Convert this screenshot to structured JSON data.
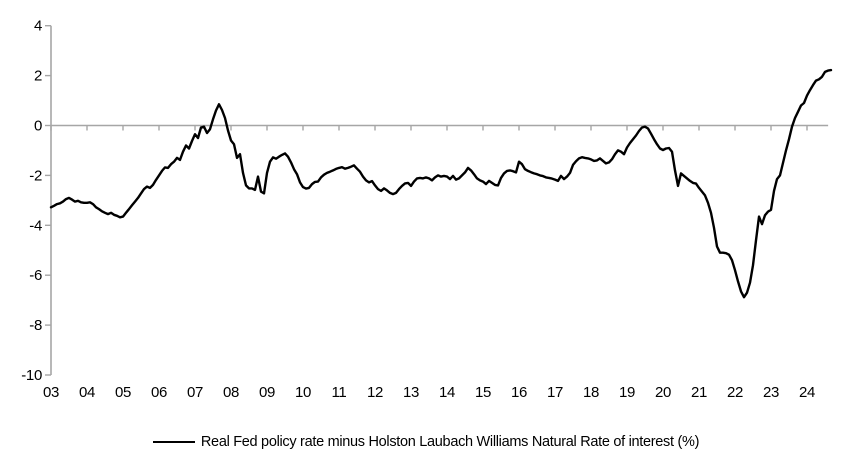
{
  "chart_data": {
    "type": "line",
    "title": "",
    "legend": "Real Fed policy rate minus Holston Laubach Williams Natural Rate of interest (%)",
    "legend_position": "bottom-center",
    "grid": "horizontal zero-line only, x-axis drawn at y=0 with year ticks",
    "x_label": "",
    "y_label": "",
    "x_range": [
      2003.0,
      2024.67
    ],
    "y_range": [
      -10,
      4
    ],
    "y_ticks": [
      4,
      2,
      0,
      -2,
      -4,
      -6,
      -8,
      -10
    ],
    "x_tick_years": [
      2003,
      2004,
      2005,
      2006,
      2007,
      2008,
      2009,
      2010,
      2011,
      2012,
      2013,
      2014,
      2015,
      2016,
      2017,
      2018,
      2019,
      2020,
      2021,
      2022,
      2023,
      2024
    ],
    "x_tick_labels": [
      "03",
      "04",
      "05",
      "06",
      "07",
      "08",
      "09",
      "10",
      "11",
      "12",
      "13",
      "14",
      "15",
      "16",
      "17",
      "18",
      "19",
      "20",
      "21",
      "22",
      "23",
      "24"
    ],
    "x_unit": "year (monthly observations)",
    "series": [
      {
        "name": "Real Fed policy rate minus Holston Laubach Williams Natural Rate of interest (%)",
        "color": "#000000",
        "x_start": 2003.0,
        "x_step": 0.0833333,
        "y": [
          -3.28,
          -3.22,
          -3.15,
          -3.12,
          -3.05,
          -2.95,
          -2.9,
          -2.97,
          -3.05,
          -3.02,
          -3.08,
          -3.1,
          -3.1,
          -3.08,
          -3.15,
          -3.28,
          -3.35,
          -3.44,
          -3.5,
          -3.55,
          -3.5,
          -3.58,
          -3.62,
          -3.68,
          -3.65,
          -3.5,
          -3.35,
          -3.2,
          -3.05,
          -2.9,
          -2.72,
          -2.55,
          -2.45,
          -2.5,
          -2.38,
          -2.18,
          -2.0,
          -1.82,
          -1.68,
          -1.7,
          -1.55,
          -1.45,
          -1.3,
          -1.38,
          -1.05,
          -0.8,
          -0.92,
          -0.62,
          -0.35,
          -0.5,
          -0.08,
          -0.05,
          -0.3,
          -0.15,
          0.25,
          0.6,
          0.85,
          0.62,
          0.3,
          -0.2,
          -0.6,
          -0.75,
          -1.3,
          -1.15,
          -1.9,
          -2.4,
          -2.52,
          -2.52,
          -2.58,
          -2.05,
          -2.65,
          -2.72,
          -1.9,
          -1.45,
          -1.28,
          -1.33,
          -1.25,
          -1.18,
          -1.12,
          -1.25,
          -1.48,
          -1.75,
          -1.95,
          -2.28,
          -2.47,
          -2.53,
          -2.5,
          -2.35,
          -2.26,
          -2.25,
          -2.08,
          -1.97,
          -1.9,
          -1.85,
          -1.8,
          -1.74,
          -1.7,
          -1.67,
          -1.73,
          -1.7,
          -1.65,
          -1.6,
          -1.73,
          -1.85,
          -2.05,
          -2.2,
          -2.28,
          -2.23,
          -2.4,
          -2.55,
          -2.62,
          -2.52,
          -2.6,
          -2.7,
          -2.75,
          -2.7,
          -2.55,
          -2.42,
          -2.32,
          -2.3,
          -2.42,
          -2.25,
          -2.12,
          -2.1,
          -2.12,
          -2.08,
          -2.12,
          -2.2,
          -2.08,
          -2.0,
          -2.05,
          -2.02,
          -2.05,
          -2.15,
          -2.02,
          -2.17,
          -2.12,
          -2.0,
          -1.88,
          -1.7,
          -1.8,
          -1.95,
          -2.12,
          -2.2,
          -2.25,
          -2.35,
          -2.22,
          -2.3,
          -2.38,
          -2.4,
          -2.1,
          -1.92,
          -1.82,
          -1.8,
          -1.83,
          -1.88,
          -1.45,
          -1.55,
          -1.75,
          -1.82,
          -1.87,
          -1.92,
          -1.95,
          -2.0,
          -2.03,
          -2.08,
          -2.1,
          -2.13,
          -2.17,
          -2.22,
          -2.02,
          -2.15,
          -2.05,
          -1.9,
          -1.58,
          -1.43,
          -1.32,
          -1.27,
          -1.3,
          -1.32,
          -1.36,
          -1.42,
          -1.4,
          -1.32,
          -1.42,
          -1.52,
          -1.48,
          -1.35,
          -1.15,
          -1.0,
          -1.05,
          -1.15,
          -0.88,
          -0.7,
          -0.55,
          -0.4,
          -0.22,
          -0.08,
          -0.05,
          -0.12,
          -0.33,
          -0.55,
          -0.75,
          -0.92,
          -0.98,
          -0.92,
          -0.9,
          -1.05,
          -1.8,
          -2.42,
          -1.92,
          -2.02,
          -2.12,
          -2.22,
          -2.3,
          -2.33,
          -2.5,
          -2.65,
          -2.8,
          -3.1,
          -3.5,
          -4.1,
          -4.85,
          -5.1,
          -5.1,
          -5.12,
          -5.18,
          -5.4,
          -5.8,
          -6.25,
          -6.65,
          -6.88,
          -6.7,
          -6.3,
          -5.6,
          -4.6,
          -3.65,
          -3.95,
          -3.6,
          -3.45,
          -3.38,
          -2.62,
          -2.15,
          -2.0,
          -1.5,
          -1.0,
          -0.55,
          -0.05,
          0.3,
          0.55,
          0.8,
          0.9,
          1.2,
          1.42,
          1.62,
          1.8,
          1.85,
          1.95,
          2.15,
          2.2,
          2.22
        ]
      }
    ]
  },
  "colors": {
    "background": "#ffffff",
    "axis": "#a6a6a6",
    "zero_line": "#a6a6a6",
    "series_line": "#000000",
    "text": "#000000"
  }
}
